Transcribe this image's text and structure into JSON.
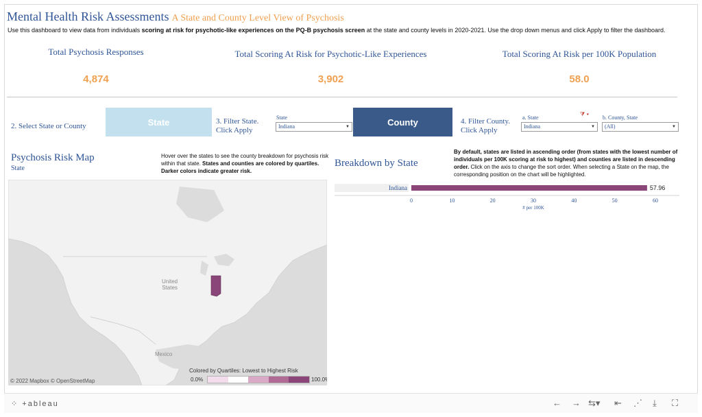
{
  "header": {
    "title": "Mental Health Risk Assessments",
    "subtitle": "A State and County Level View of Psychosis",
    "description_pre": "Use this dashboard to view data from individuals ",
    "description_bold": "scoring at risk for psychotic-like experiences on the PQ-B psychosis screen",
    "description_post": " at the state and county levels in 2020-2021. Use the drop down menus and click Apply to filter the dashboard."
  },
  "kpis": [
    {
      "label": "Total Psychosis Responses",
      "value": "4,874"
    },
    {
      "label": "Total Scoring At Risk for Psychotic-Like Experiences",
      "value": "3,902"
    },
    {
      "label": "Total Scoring At Risk per 100K Population",
      "value": "58.0"
    }
  ],
  "controls": {
    "step2_label": "2. Select State or County",
    "state_button": "State",
    "step3_line1": "3. Filter State.",
    "step3_line2": "Click Apply",
    "state_filter_label": "State",
    "state_filter_value": "Indiana",
    "county_button": "County",
    "step4_line1": "4. Filter County.",
    "step4_line2": "Click Apply",
    "a_state_label": "a. State",
    "a_state_value": "Indiana",
    "b_county_label": "b. County, State",
    "b_county_value": "(All)"
  },
  "map_section": {
    "title": "Psychosis Risk Map",
    "subtitle": "State",
    "note_plain": "Hover over the states to see the county breakdown for psychosis risk within that state. ",
    "note_bold": "States and counties are colored by quartiles. Darker colors indicate greater risk.",
    "label_us_1": "United",
    "label_us_2": "States",
    "label_mexico": "Mexico",
    "attribution": "© 2022 Mapbox  © OpenStreetMap",
    "legend_title": "Colored by Quartiles: Lowest to Highest Risk",
    "legend_min": "0.0%",
    "legend_max": "100.0%",
    "legend_colors": [
      "#f3dcec",
      "#ffffff",
      "#d9a9c6",
      "#b06b95",
      "#8a4678"
    ],
    "highlight_color": "#8a4678"
  },
  "breakdown": {
    "title": "Breakdown by State",
    "note_bold": "By default, states are listed in ascending order (from states with the lowest number of individuals per 100K scoring at risk to highest) and counties are listed in descending order.",
    "note_plain": " Click on the axis to change the sort order. When selecting a State on the map, the corresponding position on the chart will be highlighted."
  },
  "chart_data": {
    "type": "bar",
    "orientation": "horizontal",
    "categories": [
      "Indiana"
    ],
    "values": [
      57.96
    ],
    "value_labels": [
      "57.96"
    ],
    "xlabel": "# per 100K",
    "xlim": [
      0,
      60
    ],
    "xticks": [
      0,
      10,
      20,
      30,
      40,
      50,
      60
    ],
    "bar_color": "#8a4678"
  },
  "footer": {
    "logo": "+ableau"
  }
}
